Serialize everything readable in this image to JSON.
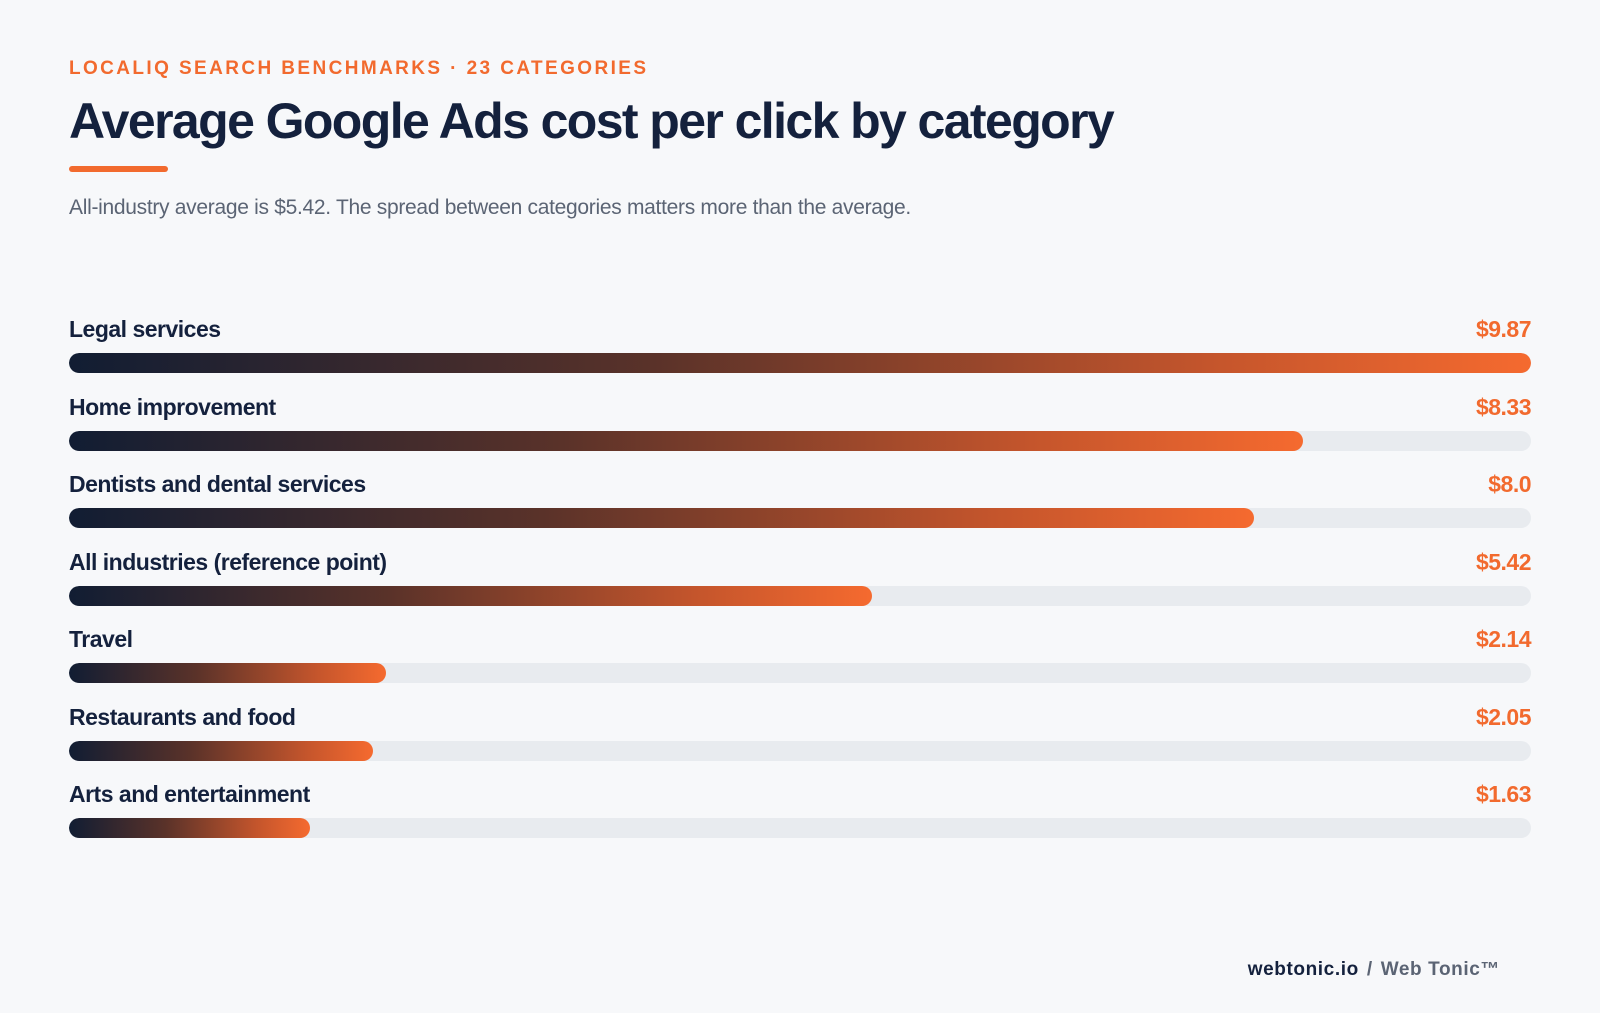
{
  "header": {
    "eyebrow": "LOCALIQ SEARCH BENCHMARKS · 23 CATEGORIES",
    "title": "Average Google Ads cost per click by category",
    "subtitle": "All-industry average is $5.42. The spread between categories matters more than the average."
  },
  "chart_data": {
    "type": "bar",
    "orientation": "horizontal",
    "title": "Average Google Ads cost per click by category",
    "categories": [
      "Legal services",
      "Home improvement",
      "Dentists and dental services",
      "All industries (reference point)",
      "Travel",
      "Restaurants and food",
      "Arts and entertainment"
    ],
    "values": [
      9.87,
      8.33,
      8.0,
      5.42,
      2.14,
      2.05,
      1.63
    ],
    "value_labels": [
      "$9.87",
      "$8.33",
      "$8.0",
      "$5.42",
      "$2.14",
      "$2.05",
      "$1.63"
    ],
    "xlim": [
      0,
      9.87
    ],
    "grid": false,
    "colors": {
      "bar_start": "#111d33",
      "bar_end": "#f56a2f",
      "track": "#e8ebef",
      "accent": "#f26a2e"
    }
  },
  "footer": {
    "site": "webtonic.io",
    "separator": "/",
    "brand": "Web Tonic™"
  }
}
